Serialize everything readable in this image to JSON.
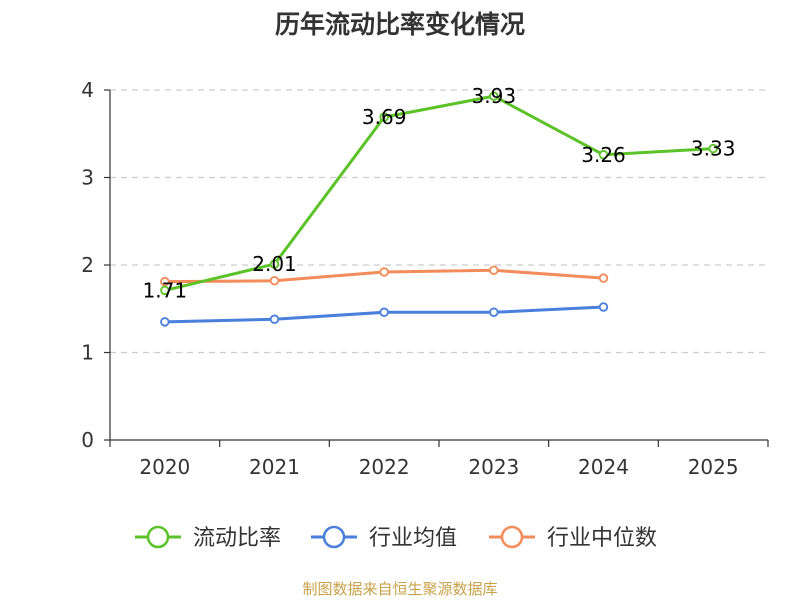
{
  "chart_data": {
    "type": "line",
    "title": "历年流动比率变化情况",
    "categories": [
      "2020",
      "2021",
      "2022",
      "2023",
      "2024",
      "2025"
    ],
    "y_ticks": [
      "0",
      "1",
      "2",
      "3",
      "4"
    ],
    "ylim": [
      0,
      4
    ],
    "grid": true,
    "legend_position": "bottom",
    "series": [
      {
        "name": "流动比率",
        "color": "#5bc228",
        "values": [
          1.71,
          2.01,
          3.69,
          3.93,
          3.26,
          3.33
        ],
        "data_labels": [
          "1.71",
          "2.01",
          "3.69",
          "3.93",
          "3.26",
          "3.33"
        ]
      },
      {
        "name": "行业均值",
        "color": "#4a7fdc",
        "values": [
          1.35,
          1.38,
          1.46,
          1.46,
          1.52,
          null
        ]
      },
      {
        "name": "行业中位数",
        "color": "#f28c5a",
        "values": [
          1.81,
          1.82,
          1.92,
          1.94,
          1.85,
          null
        ]
      }
    ]
  },
  "footer": {
    "source": "制图数据来自恒生聚源数据库"
  }
}
